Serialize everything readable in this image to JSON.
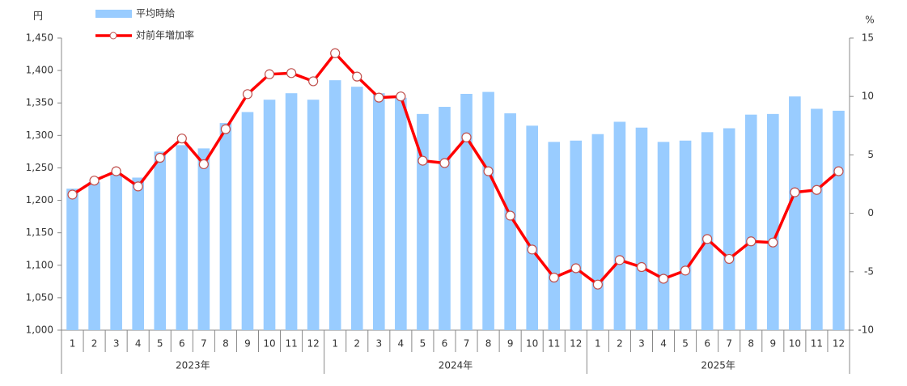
{
  "chart_data": {
    "type": "bar-line",
    "y_unit": "円",
    "y2_unit": "%",
    "categories": [
      "1",
      "2",
      "3",
      "4",
      "5",
      "6",
      "7",
      "8",
      "9",
      "10",
      "11",
      "12",
      "1",
      "2",
      "3",
      "4",
      "5",
      "6",
      "7",
      "8",
      "9",
      "10",
      "11",
      "12",
      "1",
      "2",
      "3",
      "4",
      "5",
      "6",
      "7",
      "8",
      "9",
      "10",
      "11",
      "12"
    ],
    "groups": [
      "2023年",
      "2024年",
      "2025年"
    ],
    "series": [
      {
        "name": "平均時給",
        "kind": "bar",
        "color": "#99ccff",
        "values": [
          1218,
          1228,
          1240,
          1235,
          1275,
          1285,
          1280,
          1319,
          1336,
          1355,
          1365,
          1355,
          1385,
          1375,
          1365,
          1358,
          1333,
          1344,
          1364,
          1367,
          1334,
          1315,
          1290,
          1292,
          1302,
          1321,
          1312,
          1290,
          1292,
          1305,
          1311,
          1332,
          1333,
          1360,
          1341,
          1338
        ]
      },
      {
        "name": "対前年増加率",
        "kind": "line",
        "axis": "y2",
        "color": "#ff0000",
        "values": [
          1.6,
          2.8,
          3.6,
          2.3,
          4.75,
          6.4,
          4.2,
          7.2,
          10.2,
          11.9,
          12.0,
          11.3,
          13.7,
          11.7,
          9.9,
          10.0,
          4.5,
          4.3,
          6.5,
          3.6,
          -0.2,
          -3.1,
          -5.5,
          -4.7,
          -6.1,
          -4.0,
          -4.6,
          -5.6,
          -4.9,
          -2.2,
          -3.9,
          -2.4,
          -2.5,
          1.8,
          2.0,
          3.6
        ]
      }
    ],
    "ylim": [
      1000,
      1450
    ],
    "yticks": [
      {
        "value": 1000,
        "label": "1,000"
      },
      {
        "value": 1050,
        "label": "1,050"
      },
      {
        "value": 1100,
        "label": "1,100"
      },
      {
        "value": 1150,
        "label": "1,150"
      },
      {
        "value": 1200,
        "label": "1,200"
      },
      {
        "value": 1250,
        "label": "1,250"
      },
      {
        "value": 1300,
        "label": "1,300"
      },
      {
        "value": 1350,
        "label": "1,350"
      },
      {
        "value": 1400,
        "label": "1,400"
      },
      {
        "value": 1450,
        "label": "1,450"
      }
    ],
    "y2lim": [
      -10,
      15
    ],
    "y2ticks": [
      -10,
      -5,
      0,
      5,
      10,
      15
    ]
  }
}
